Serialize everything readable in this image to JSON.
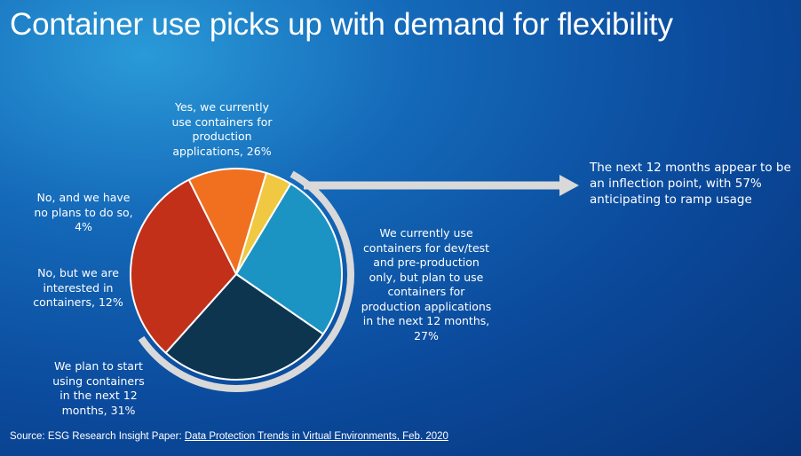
{
  "title": "Container use picks up with demand for flexibility",
  "insight": "The next 12 months appear to be\nan inflection point, with 57%\nanticipating to ramp usage",
  "source": {
    "prefix": "Source: ESG Research Insight Paper: ",
    "link": "Data Protection Trends in Virtual Environments, Feb. 2020"
  },
  "colors": {
    "yes": "#1b94c4",
    "devtest": "#0e3550",
    "plan": "#c2301a",
    "interested": "#f07020",
    "no_plans": "#f0c842",
    "bracket": "#d9d9d9",
    "arrow": "#d9d9d9"
  },
  "chart_data": {
    "type": "pie",
    "title": "",
    "slices": [
      {
        "label": "Yes, we currently\nuse containers for\nproduction\napplications, 26%",
        "value": 26
      },
      {
        "label": "We currently use\ncontainers for dev/test\nand pre-production\nonly, but plan to use\ncontainers for\nproduction applications\nin the next 12 months,\n27%",
        "value": 27
      },
      {
        "label": "We plan to start\nusing containers\nin the next 12\nmonths, 31%",
        "value": 31
      },
      {
        "label": "No, but we are\ninterested in\ncontainers, 12%",
        "value": 12
      },
      {
        "label": "No, and we have\nno plans to do so,\n4%",
        "value": 4
      }
    ]
  }
}
